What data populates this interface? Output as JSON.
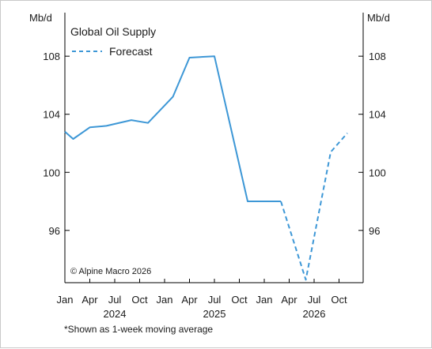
{
  "chart_data": {
    "type": "line",
    "title": "Global Oil Supply",
    "ylabel_left": "Mb/d",
    "ylabel_right": "Mb/d",
    "ylim": [
      92.4,
      111
    ],
    "yticks": [
      96,
      100,
      104,
      108
    ],
    "legend": {
      "placement": "top-left",
      "entries": [
        "Forecast"
      ]
    },
    "x_months": [
      "Jan",
      "Apr",
      "Jul",
      "Oct",
      "Jan",
      "Apr",
      "Jul",
      "Oct",
      "Jan",
      "Apr",
      "Jul",
      "Oct"
    ],
    "x_years": [
      "2024",
      "2025",
      "2026"
    ],
    "series": [
      {
        "style": "solid",
        "x": [
          "2024-01",
          "2024-02",
          "2024-04",
          "2024-06",
          "2024-09",
          "2024-11",
          "2025-02",
          "2025-04",
          "2025-07",
          "2025-09",
          "2025-11",
          "2026-01",
          "2026-03"
        ],
        "y": [
          102.8,
          102.3,
          103.1,
          103.2,
          103.6,
          103.4,
          105.2,
          107.9,
          108.0,
          103.0,
          98.0,
          98.0,
          98.0
        ]
      },
      {
        "name": "Forecast",
        "style": "dashed",
        "x": [
          "2026-03",
          "2026-06",
          "2026-09",
          "2026-11"
        ],
        "y": [
          98.0,
          92.6,
          101.4,
          102.7
        ]
      }
    ],
    "source": "© Alpine Macro 2026",
    "footnote": "*Shown as 1-week moving average",
    "line_color": "#3d97d6"
  }
}
